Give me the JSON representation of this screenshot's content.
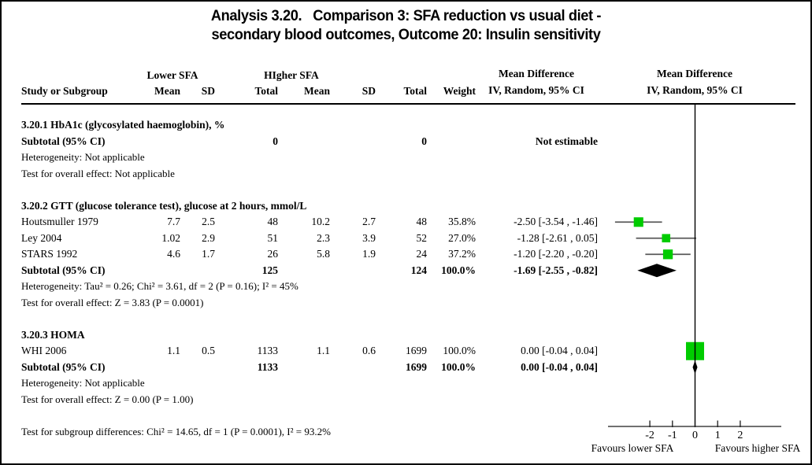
{
  "title": {
    "line1": "Analysis 3.20.   Comparison 3: SFA reduction vs usual diet -",
    "line2": "secondary blood outcomes, Outcome 20: Insulin sensitivity"
  },
  "header": {
    "study": "Study or Subgroup",
    "group1": "Lower SFA",
    "group2": "HIgher SFA",
    "mean": "Mean",
    "sd": "SD",
    "total": "Total",
    "weight": "Weight",
    "md_title": "Mean Difference",
    "md_sub": "IV, Random, 95% CI"
  },
  "sections": [
    {
      "label": "3.20.1 HbA1c (glycosylated haemoglobin), %",
      "subtotal": {
        "name": "Subtotal (95% CI)",
        "total1": "0",
        "total2": "0",
        "weight": "",
        "ci": "Not estimable"
      },
      "heterogeneity": "Heterogeneity: Not applicable",
      "test": "Test for overall effect: Not applicable"
    },
    {
      "label": "3.20.2 GTT (glucose tolerance test), glucose at 2 hours, mmol/L",
      "studies": [
        {
          "name": "Houtsmuller 1979",
          "mean1": "7.7",
          "sd1": "2.5",
          "total1": "48",
          "mean2": "10.2",
          "sd2": "2.7",
          "total2": "48",
          "weight": "35.8%",
          "ci": "-2.50 [-3.54 , -1.46]"
        },
        {
          "name": "Ley 2004",
          "mean1": "1.02",
          "sd1": "2.9",
          "total1": "51",
          "mean2": "2.3",
          "sd2": "3.9",
          "total2": "52",
          "weight": "27.0%",
          "ci": "-1.28 [-2.61 , 0.05]"
        },
        {
          "name": "STARS 1992",
          "mean1": "4.6",
          "sd1": "1.7",
          "total1": "26",
          "mean2": "5.8",
          "sd2": "1.9",
          "total2": "24",
          "weight": "37.2%",
          "ci": "-1.20 [-2.20 , -0.20]"
        }
      ],
      "subtotal": {
        "name": "Subtotal (95% CI)",
        "total1": "125",
        "total2": "124",
        "weight": "100.0%",
        "ci": "-1.69 [-2.55 , -0.82]"
      },
      "heterogeneity": "Heterogeneity: Tau² = 0.26; Chi² = 3.61, df = 2 (P = 0.16); I² = 45%",
      "test": "Test for overall effect: Z = 3.83 (P = 0.0001)"
    },
    {
      "label": "3.20.3 HOMA",
      "studies": [
        {
          "name": "WHI 2006",
          "mean1": "1.1",
          "sd1": "0.5",
          "total1": "1133",
          "mean2": "1.1",
          "sd2": "0.6",
          "total2": "1699",
          "weight": "100.0%",
          "ci": "0.00 [-0.04 , 0.04]"
        }
      ],
      "subtotal": {
        "name": "Subtotal (95% CI)",
        "total1": "1133",
        "total2": "1699",
        "weight": "100.0%",
        "ci": "0.00 [-0.04 , 0.04]"
      },
      "heterogeneity": "Heterogeneity: Not applicable",
      "test": "Test for overall effect: Z = 0.00 (P = 1.00)"
    }
  ],
  "footer": {
    "subgroup_diff": "Test for subgroup differences: Chi² = 14.65, df = 1 (P = 0.0001), I² = 93.2%"
  },
  "axis": {
    "favours_left": "Favours lower SFA",
    "favours_right": "Favours higher SFA"
  },
  "chart_data": {
    "type": "forest",
    "effect_measure": "Mean Difference, IV, Random, 95% CI",
    "zero_line": 0,
    "axis_ticks": [
      -2,
      -1,
      0,
      1,
      2
    ],
    "axis_range_drawn": [
      -3.85,
      3.8
    ],
    "favours_left": "Favours lower SFA",
    "favours_right": "Favours higher SFA",
    "groups": [
      {
        "name": "3.20.1 HbA1c (glycosylated haemoglobin), %",
        "studies": [],
        "subtotal": null,
        "note": "Not estimable"
      },
      {
        "name": "3.20.2 GTT (glucose tolerance test), glucose at 2 hours, mmol/L",
        "studies": [
          {
            "label": "Houtsmuller 1979",
            "est": -2.5,
            "lo": -3.54,
            "hi": -1.46,
            "weight_pct": 35.8,
            "row": 6
          },
          {
            "label": "Ley 2004",
            "est": -1.28,
            "lo": -2.61,
            "hi": 0.05,
            "weight_pct": 27.0,
            "row": 7
          },
          {
            "label": "STARS 1992",
            "est": -1.2,
            "lo": -2.2,
            "hi": -0.2,
            "weight_pct": 37.2,
            "row": 8
          }
        ],
        "subtotal": {
          "est": -1.69,
          "lo": -2.55,
          "hi": -0.82,
          "row": 9
        }
      },
      {
        "name": "3.20.3 HOMA",
        "studies": [
          {
            "label": "WHI 2006",
            "est": 0.0,
            "lo": -0.04,
            "hi": 0.04,
            "weight_pct": 100.0,
            "row": 14
          }
        ],
        "subtotal": {
          "est": 0.0,
          "lo": -0.04,
          "hi": 0.04,
          "row": 15
        }
      }
    ],
    "colors": {
      "marker": "#00CC00",
      "ci_line": "#5a5a5a",
      "diamond": "#000000",
      "axis": "#1a1a1a"
    }
  }
}
